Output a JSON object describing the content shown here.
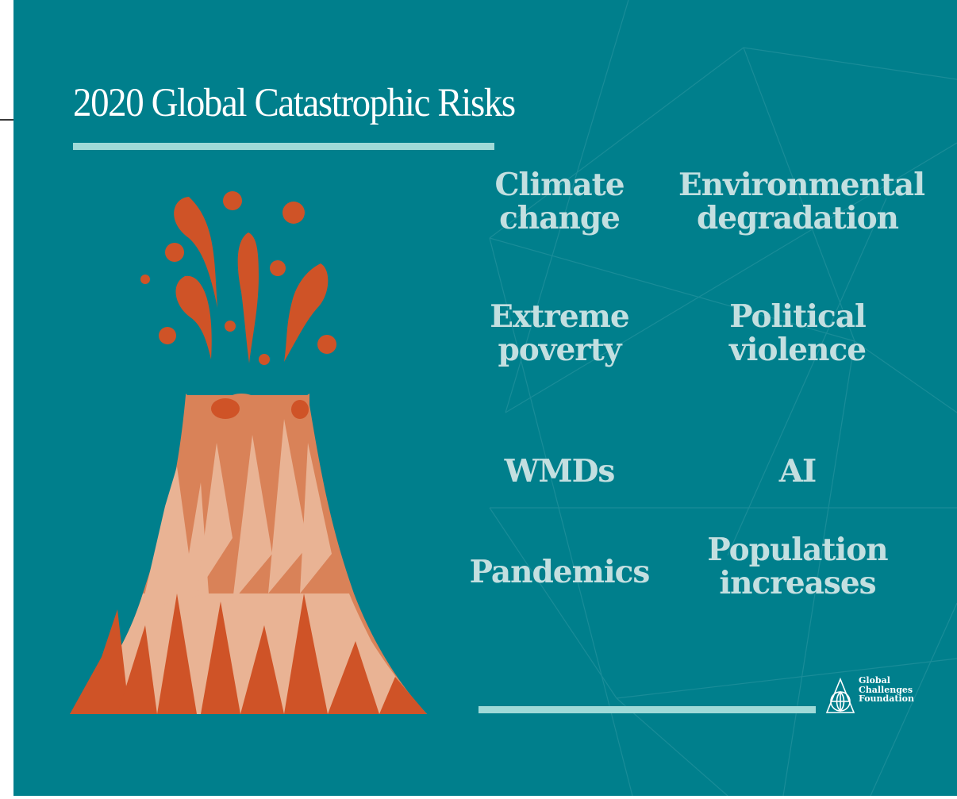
{
  "title": "2020 Global Catastrophic Risks",
  "risks": [
    {
      "line1": "Climate",
      "line2": "change"
    },
    {
      "line1": "Environmental",
      "line2": "degradation"
    },
    {
      "line1": "Extreme",
      "line2": "poverty"
    },
    {
      "line1": "Political",
      "line2": "violence"
    },
    {
      "line1": "WMDs",
      "line2": ""
    },
    {
      "line1": "AI",
      "line2": ""
    },
    {
      "line1": "Pandemics",
      "line2": ""
    },
    {
      "line1": "Population",
      "line2": "increases"
    }
  ],
  "logo": {
    "line1": "Global",
    "line2": "Challenges",
    "line3": "Foundation"
  },
  "colors": {
    "background": "#007f8c",
    "accent_bar": "#9fdad8",
    "risk_text": "#c3dfe0",
    "lava_dark": "#cf5327",
    "lava_mid": "#d98258",
    "lava_light": "#e9b394"
  },
  "icons": [
    "volcano-illustration",
    "globe-triangle-logo-icon"
  ]
}
